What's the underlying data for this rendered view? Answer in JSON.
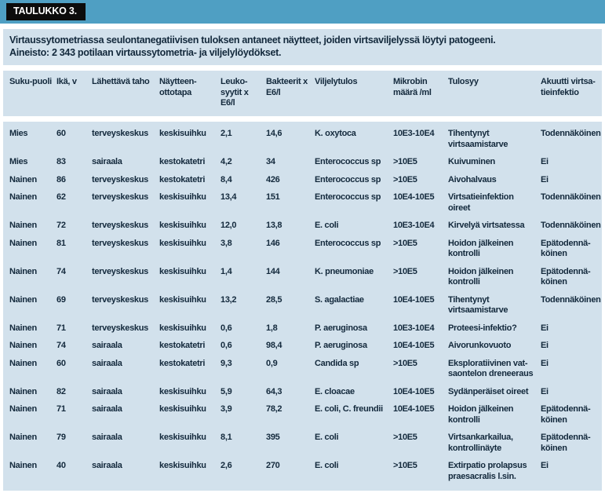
{
  "header": {
    "tag": "TAULUKKO 3.",
    "title_line1": "Virtaussytometriassa seulontanegatiivisen tuloksen antaneet näytteet, joiden virtsaviljelyssä löytyi patogeeni.",
    "title_line2": "Aineisto: 2 343 potilaan virtaussytometria- ja viljelylöydökset."
  },
  "colors": {
    "accent_teal_bar": "#4f9fc3",
    "tag_background": "#0c0c0c",
    "band_background": "#d2e1ec",
    "text": "#13293c"
  },
  "table": {
    "columns": [
      "Suku-puoli",
      "Ikä, v",
      "Lähettävä taho",
      "Näytteen-ottotapa",
      "Leuko-syytit x E6/l",
      "Bakteerit x E6/l",
      "Viljelytulos",
      "Mikrobin määrä /ml",
      "Tulosyy",
      "Akuutti virtsa-tieinfektio"
    ],
    "rows": [
      {
        "cells": [
          "Mies",
          "60",
          "terveyskeskus",
          "keskisuihku",
          "2,1",
          "14,6",
          "K. oxytoca",
          "10E3-10E4",
          "Tihentynyt virtsaamistarve",
          "Todennäköinen"
        ]
      },
      {
        "cells": [
          "Mies",
          "83",
          "sairaala",
          "kestokatetri",
          "4,2",
          "34",
          "Enterococcus sp",
          ">10E5",
          "Kuivuminen",
          "Ei"
        ]
      },
      {
        "cells": [
          "Nainen",
          "86",
          "terveyskeskus",
          "kestokatetri",
          "8,4",
          "426",
          "Enterococcus sp",
          ">10E5",
          "Aivohalvaus",
          "Ei"
        ]
      },
      {
        "cells": [
          "Nainen",
          "62",
          "terveyskeskus",
          "keskisuihku",
          "13,4",
          "151",
          "Enterococcus sp",
          "10E4-10E5",
          "Virtsatieinfektion oireet",
          "Todennäköinen"
        ]
      },
      {
        "cells": [
          "Nainen",
          "72",
          "terveyskeskus",
          "keskisuihku",
          "12,0",
          "13,8",
          "E. coli",
          "10E3-10E4",
          "Kirvelyä virtsatessa",
          "Todennäköinen"
        ]
      },
      {
        "cells": [
          "Nainen",
          "81",
          "terveyskeskus",
          "keskisuihku",
          "3,8",
          "146",
          "Enterococcus sp",
          ">10E5",
          "Hoidon jälkeinen kontrolli",
          "Epätodennä-köinen"
        ]
      },
      {
        "cells": [
          "Nainen",
          "74",
          "terveyskeskus",
          "keskisuihku",
          "1,4",
          "144",
          "K. pneumoniae",
          ">10E5",
          "Hoidon jälkeinen kontrolli",
          "Epätodennä-köinen"
        ]
      },
      {
        "cells": [
          "Nainen",
          "69",
          "terveyskeskus",
          "keskisuihku",
          "13,2",
          "28,5",
          "S. agalactiae",
          "10E4-10E5",
          "Tihentynyt virtsaamistarve",
          "Todennäköinen"
        ]
      },
      {
        "cells": [
          "Nainen",
          "71",
          "terveyskeskus",
          "keskisuihku",
          "0,6",
          "1,8",
          "P. aeruginosa",
          "10E3-10E4",
          "Proteesi-infektio?",
          "Ei"
        ]
      },
      {
        "cells": [
          "Nainen",
          "74",
          "sairaala",
          "kestokatetri",
          "0,6",
          "98,4",
          "P. aeruginosa",
          "10E4-10E5",
          "Aivorunkovuoto",
          "Ei"
        ]
      },
      {
        "cells": [
          "Nainen",
          "60",
          "sairaala",
          "kestokatetri",
          "9,3",
          "0,9",
          "Candida sp",
          ">10E5",
          "Eksploratiivinen vat-saontelon dreneeraus",
          "Ei"
        ]
      },
      {
        "cells": [
          "Nainen",
          "82",
          "sairaala",
          "keskisuihku",
          "5,9",
          "64,3",
          "E. cloacae",
          "10E4-10E5",
          "Sydänperäiset oireet",
          "Ei"
        ]
      },
      {
        "cells": [
          "Nainen",
          "71",
          "sairaala",
          "keskisuihku",
          "3,9",
          "78,2",
          "E. coli, C. freundii",
          "10E4-10E5",
          "Hoidon jälkeinen kontrolli",
          "Epätodennä-köinen"
        ]
      },
      {
        "cells": [
          "Nainen",
          "79",
          "sairaala",
          "keskisuihku",
          "8,1",
          "395",
          "E. coli",
          ">10E5",
          "Virtsankarkailua, kontrollinäyte",
          "Epätodennä-köinen"
        ]
      },
      {
        "cells": [
          "Nainen",
          "40",
          "sairaala",
          "keskisuihku",
          "2,6",
          "270",
          "E. coli",
          ">10E5",
          "Extirpatio prolapsus praesacralis l.sin.",
          "Ei"
        ]
      }
    ]
  }
}
